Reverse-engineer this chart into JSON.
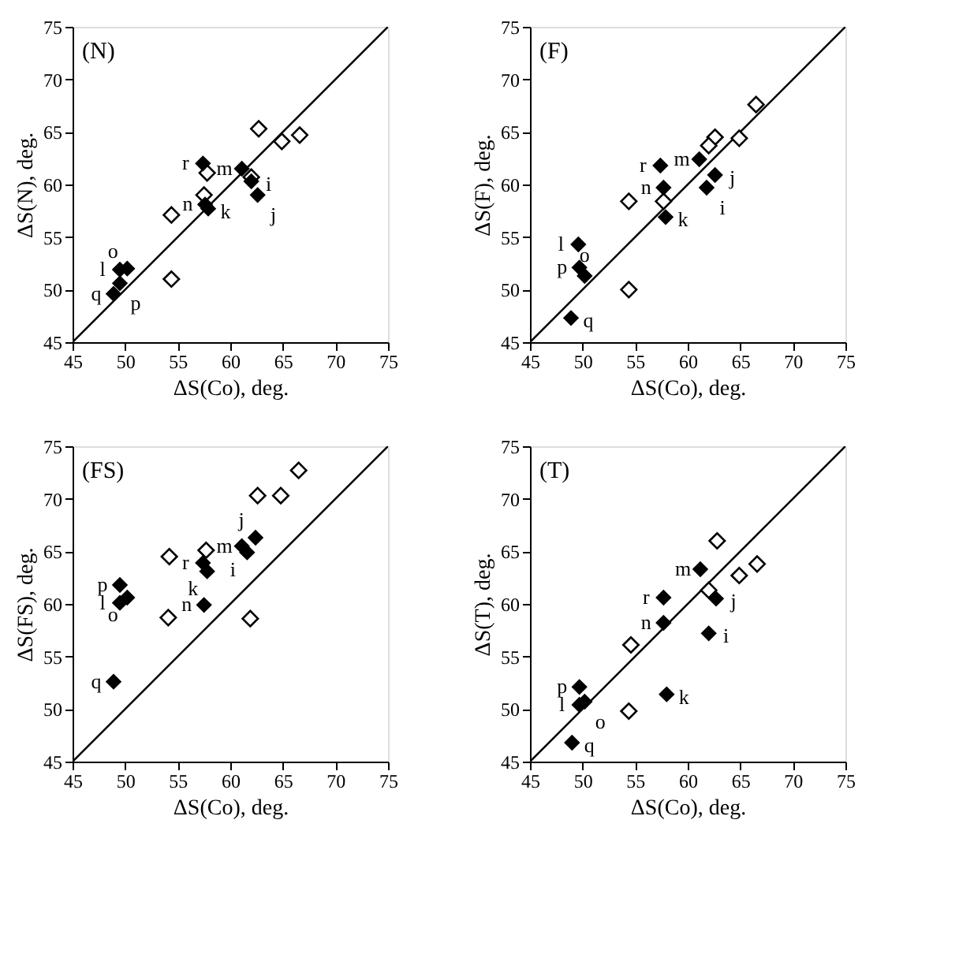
{
  "chart_data": [
    {
      "type": "scatter",
      "title": "(N)",
      "xlabel": "ΔS(Co), deg.",
      "ylabel": "ΔS(N), deg.",
      "xlim": [
        45,
        75
      ],
      "ylim": [
        45,
        75
      ],
      "xticks": [
        45,
        50,
        55,
        60,
        65,
        70,
        75
      ],
      "yticks": [
        45,
        50,
        55,
        60,
        65,
        70,
        75
      ],
      "grid": false,
      "legend": false,
      "series": [
        {
          "type": "line",
          "color": "#000000",
          "line_style": "solid",
          "x": [
            45,
            75
          ],
          "values": [
            45,
            75
          ]
        },
        {
          "color": "#ffffff",
          "marker": "diamond",
          "x": [
            62.7,
            64.9,
            66.6,
            57.8,
            62.0,
            57.5,
            54.4,
            54.4
          ],
          "values": [
            65.3,
            64.1,
            64.7,
            61.1,
            60.7,
            59.0,
            57.1,
            51.0
          ]
        },
        {
          "color": "#000000",
          "marker": "diamond",
          "x": [
            57.4,
            61.1,
            62.0,
            62.6,
            57.9,
            57.6,
            49.5,
            50.2,
            49.5,
            48.9
          ],
          "values": [
            62.0,
            61.5,
            60.3,
            59.0,
            57.7,
            58.1,
            51.9,
            52.0,
            50.6,
            49.6
          ]
        }
      ],
      "annotations": [
        {
          "text": "r",
          "x": 57.4,
          "y": 62.0
        },
        {
          "text": "m",
          "x": 61.1,
          "y": 61.5
        },
        {
          "text": "i",
          "x": 62.0,
          "y": 60.3
        },
        {
          "text": "j",
          "x": 62.6,
          "y": 59.0
        },
        {
          "text": "k",
          "x": 57.9,
          "y": 57.7
        },
        {
          "text": "n",
          "x": 57.6,
          "y": 58.1
        },
        {
          "text": "l",
          "x": 49.5,
          "y": 51.9
        },
        {
          "text": "o",
          "x": 50.2,
          "y": 52.0
        },
        {
          "text": "p",
          "x": 49.5,
          "y": 50.6
        },
        {
          "text": "q",
          "x": 48.9,
          "y": 49.6
        }
      ]
    },
    {
      "type": "scatter",
      "title": "(F)",
      "xlabel": "ΔS(Co), deg.",
      "ylabel": "ΔS(F), deg.",
      "xlim": [
        45,
        75
      ],
      "ylim": [
        45,
        75
      ],
      "xticks": [
        45,
        50,
        55,
        60,
        65,
        70,
        75
      ],
      "yticks": [
        45,
        50,
        55,
        60,
        65,
        70,
        75
      ],
      "grid": false,
      "legend": false,
      "series": [
        {
          "type": "line",
          "color": "#000000",
          "line_style": "solid",
          "x": [
            45,
            75
          ],
          "values": [
            45,
            75
          ]
        },
        {
          "color": "#ffffff",
          "marker": "diamond",
          "x": [
            66.5,
            64.9,
            62.6,
            62.0,
            54.4,
            57.7,
            54.4
          ],
          "values": [
            67.6,
            64.4,
            64.5,
            63.7,
            58.4,
            58.4,
            50.0
          ]
        },
        {
          "color": "#000000",
          "marker": "diamond",
          "x": [
            57.4,
            61.1,
            62.6,
            61.8,
            57.7,
            57.9,
            49.6,
            49.7,
            50.2,
            48.9
          ],
          "values": [
            61.8,
            62.4,
            60.9,
            59.7,
            59.7,
            56.9,
            54.3,
            52.1,
            51.3,
            47.3
          ]
        }
      ],
      "annotations": [
        {
          "text": "r",
          "x": 57.4,
          "y": 61.8
        },
        {
          "text": "m",
          "x": 61.1,
          "y": 62.4
        },
        {
          "text": "j",
          "x": 62.6,
          "y": 60.9
        },
        {
          "text": "i",
          "x": 61.8,
          "y": 59.7
        },
        {
          "text": "n",
          "x": 57.7,
          "y": 59.7
        },
        {
          "text": "k",
          "x": 57.9,
          "y": 56.9
        },
        {
          "text": "l",
          "x": 49.6,
          "y": 54.3
        },
        {
          "text": "p",
          "x": 49.7,
          "y": 52.1
        },
        {
          "text": "o",
          "x": 50.2,
          "y": 51.3
        },
        {
          "text": "q",
          "x": 48.9,
          "y": 47.3
        }
      ]
    },
    {
      "type": "scatter",
      "title": "(FS)",
      "xlabel": "ΔS(Co), deg.",
      "ylabel": "ΔS(FS), deg.",
      "xlim": [
        45,
        75
      ],
      "ylim": [
        45,
        75
      ],
      "xticks": [
        45,
        50,
        55,
        60,
        65,
        70,
        75
      ],
      "yticks": [
        45,
        50,
        55,
        60,
        65,
        70,
        75
      ],
      "grid": false,
      "legend": false,
      "series": [
        {
          "type": "line",
          "color": "#000000",
          "line_style": "solid",
          "x": [
            45,
            75
          ],
          "values": [
            45,
            75
          ]
        },
        {
          "color": "#ffffff",
          "marker": "diamond",
          "x": [
            66.5,
            62.6,
            64.8,
            54.2,
            57.7,
            54.1,
            61.9
          ],
          "values": [
            72.7,
            70.3,
            70.3,
            64.5,
            65.1,
            58.7,
            58.6
          ]
        },
        {
          "color": "#000000",
          "marker": "diamond",
          "x": [
            62.4,
            61.1,
            61.6,
            57.4,
            57.8,
            49.5,
            50.2,
            49.5,
            57.5,
            48.9
          ],
          "values": [
            66.3,
            65.5,
            64.9,
            63.9,
            63.1,
            61.8,
            60.6,
            60.1,
            59.9,
            52.6
          ]
        }
      ],
      "annotations": [
        {
          "text": "j",
          "x": 62.4,
          "y": 66.3
        },
        {
          "text": "m",
          "x": 61.1,
          "y": 65.5
        },
        {
          "text": "i",
          "x": 61.6,
          "y": 64.9
        },
        {
          "text": "r",
          "x": 57.4,
          "y": 63.9
        },
        {
          "text": "k",
          "x": 57.8,
          "y": 63.1
        },
        {
          "text": "p",
          "x": 49.5,
          "y": 61.8
        },
        {
          "text": "o",
          "x": 50.2,
          "y": 60.6
        },
        {
          "text": "l",
          "x": 49.5,
          "y": 60.1
        },
        {
          "text": "n",
          "x": 57.5,
          "y": 59.9
        },
        {
          "text": "q",
          "x": 48.9,
          "y": 52.6
        }
      ]
    },
    {
      "type": "scatter",
      "title": "(T)",
      "xlabel": "ΔS(Co), deg.",
      "ylabel": "ΔS(T), deg.",
      "xlim": [
        45,
        75
      ],
      "ylim": [
        45,
        75
      ],
      "xticks": [
        45,
        50,
        55,
        60,
        65,
        70,
        75
      ],
      "yticks": [
        45,
        50,
        55,
        60,
        65,
        70,
        75
      ],
      "grid": false,
      "legend": false,
      "series": [
        {
          "type": "line",
          "color": "#000000",
          "line_style": "solid",
          "x": [
            45,
            75
          ],
          "values": [
            45,
            75
          ]
        },
        {
          "color": "#ffffff",
          "marker": "diamond",
          "x": [
            62.8,
            66.6,
            64.9,
            62.0,
            54.6,
            54.4
          ],
          "values": [
            66.0,
            63.8,
            62.7,
            61.3,
            56.1,
            49.8
          ]
        },
        {
          "color": "#000000",
          "marker": "diamond",
          "x": [
            61.2,
            57.7,
            62.7,
            57.7,
            62.0,
            58.0,
            49.7,
            49.7,
            50.2,
            49.0
          ],
          "values": [
            63.3,
            60.6,
            60.5,
            58.2,
            57.2,
            51.4,
            52.1,
            50.4,
            50.7,
            46.8
          ]
        }
      ],
      "annotations": [
        {
          "text": "m",
          "x": 61.2,
          "y": 63.3
        },
        {
          "text": "r",
          "x": 57.7,
          "y": 60.6
        },
        {
          "text": "j",
          "x": 62.7,
          "y": 60.5
        },
        {
          "text": "n",
          "x": 57.7,
          "y": 58.2
        },
        {
          "text": "i",
          "x": 62.0,
          "y": 57.2
        },
        {
          "text": "k",
          "x": 58.0,
          "y": 51.4
        },
        {
          "text": "p",
          "x": 49.7,
          "y": 52.1
        },
        {
          "text": "l",
          "x": 49.7,
          "y": 50.4
        },
        {
          "text": "o",
          "x": 50.2,
          "y": 50.7
        },
        {
          "text": "q",
          "x": 49.0,
          "y": 46.8
        }
      ]
    }
  ]
}
